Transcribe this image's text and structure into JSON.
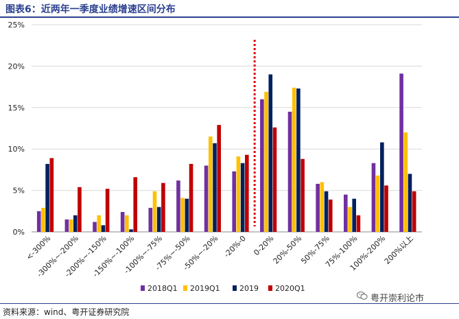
{
  "title": "图表6：近两年一季度业绩增速区间分布",
  "source": "资料来源：wind、粤开证券研究院",
  "watermark": "粤开崇利论市",
  "colors": {
    "2018Q1": "#7030a0",
    "2019Q1": "#ffc000",
    "2019": "#002060",
    "2020Q1": "#c00000",
    "divider": "#e00000",
    "title": "#2a3f8f"
  },
  "chart_data": {
    "type": "bar",
    "categories": [
      "<-300%",
      "-300%~-200%",
      "-200%~-150%",
      "-150%~-100%",
      "-100%~-75%",
      "-75%~-50%",
      "-50%~-20%",
      "-20%-0",
      "0-20%",
      "20%-50%",
      "50%-75%",
      "75%-100%",
      "100%-200%",
      "200%以上"
    ],
    "series": [
      {
        "name": "2018Q1",
        "values": [
          2.5,
          1.5,
          1.2,
          2.4,
          2.9,
          6.2,
          8.0,
          7.3,
          16.0,
          14.5,
          5.8,
          4.5,
          8.3,
          19.1
        ]
      },
      {
        "name": "2019Q1",
        "values": [
          2.9,
          1.5,
          2.0,
          2.0,
          4.9,
          4.1,
          11.5,
          9.1,
          16.9,
          17.4,
          6.0,
          3.0,
          6.8,
          12.0
        ]
      },
      {
        "name": "2019",
        "values": [
          8.2,
          2.0,
          0.8,
          0.3,
          3.0,
          4.0,
          10.7,
          8.3,
          19.0,
          17.3,
          4.9,
          4.0,
          10.8,
          7.0
        ]
      },
      {
        "name": "2020Q1",
        "values": [
          8.9,
          5.4,
          5.2,
          6.6,
          5.9,
          8.2,
          12.9,
          9.3,
          12.6,
          8.8,
          3.9,
          2.0,
          5.6,
          4.9
        ]
      }
    ],
    "ylim": [
      0,
      25
    ],
    "yticks": [
      "0%",
      "5%",
      "10%",
      "15%",
      "20%",
      "25%"
    ],
    "ytick_values": [
      0,
      5,
      10,
      15,
      20,
      25
    ],
    "divider_after_category": "-20%-0",
    "legend_position": "bottom"
  }
}
